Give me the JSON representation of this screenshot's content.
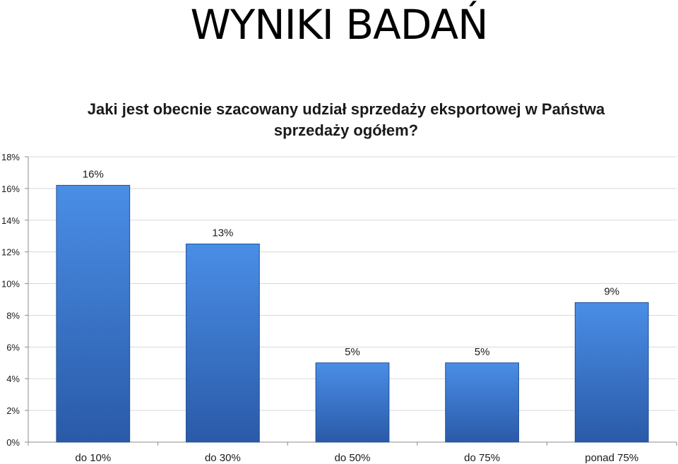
{
  "slide": {
    "title": "WYNIKI BADAŃ"
  },
  "chart_data": {
    "type": "bar",
    "title": "Jaki jest obecnie szacowany udział sprzedaży eksportowej w Państwa sprzedaży ogółem?",
    "xlabel": "",
    "ylabel": "",
    "categories": [
      "do 10%",
      "do 30%",
      "do 50%",
      "do 75%",
      "ponad 75%"
    ],
    "values": [
      16.2,
      12.5,
      5.0,
      5.0,
      8.8
    ],
    "data_labels": [
      "16%",
      "13%",
      "5%",
      "5%",
      "9%"
    ],
    "ylim": [
      0,
      18
    ],
    "yticks": [
      0,
      2,
      4,
      6,
      8,
      10,
      12,
      14,
      16,
      18
    ],
    "ytick_labels": [
      "0%",
      "2%",
      "4%",
      "6%",
      "8%",
      "10%",
      "12%",
      "14%",
      "16%",
      "18%"
    ],
    "grid": true,
    "legend": "none",
    "colors": {
      "bar_light": "#4a8ee6",
      "bar_dark": "#2a5aa8",
      "bar_edge": "#1f4e96",
      "gridline": "#d9d9d9",
      "axis": "#8c8c8c"
    }
  }
}
